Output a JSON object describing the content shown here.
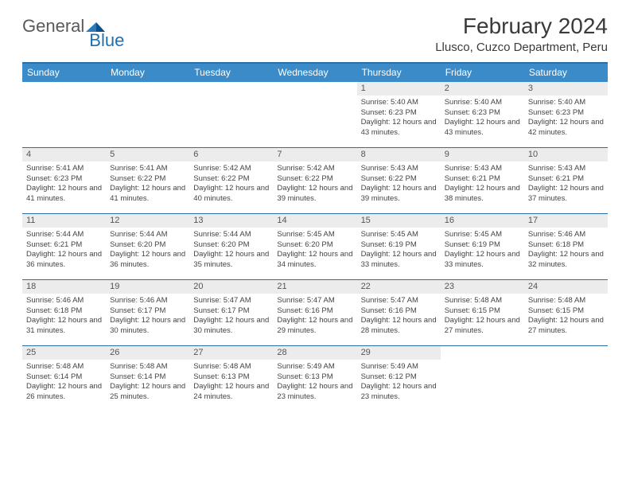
{
  "brand": {
    "word1": "General",
    "word2": "Blue"
  },
  "colors": {
    "header_bar": "#3b8bc9",
    "rule": "#2a6fa8",
    "daynum_bg": "#ececec",
    "text": "#333333",
    "brand_gray": "#5a5a5a",
    "brand_blue": "#1f6fb2",
    "background": "#ffffff"
  },
  "title": "February 2024",
  "location": "Llusco, Cuzco Department, Peru",
  "dow": [
    "Sunday",
    "Monday",
    "Tuesday",
    "Wednesday",
    "Thursday",
    "Friday",
    "Saturday"
  ],
  "weeks": [
    [
      null,
      null,
      null,
      null,
      {
        "n": "1",
        "sr": "5:40 AM",
        "ss": "6:23 PM",
        "dl": "12 hours and 43 minutes."
      },
      {
        "n": "2",
        "sr": "5:40 AM",
        "ss": "6:23 PM",
        "dl": "12 hours and 43 minutes."
      },
      {
        "n": "3",
        "sr": "5:40 AM",
        "ss": "6:23 PM",
        "dl": "12 hours and 42 minutes."
      }
    ],
    [
      {
        "n": "4",
        "sr": "5:41 AM",
        "ss": "6:23 PM",
        "dl": "12 hours and 41 minutes."
      },
      {
        "n": "5",
        "sr": "5:41 AM",
        "ss": "6:22 PM",
        "dl": "12 hours and 41 minutes."
      },
      {
        "n": "6",
        "sr": "5:42 AM",
        "ss": "6:22 PM",
        "dl": "12 hours and 40 minutes."
      },
      {
        "n": "7",
        "sr": "5:42 AM",
        "ss": "6:22 PM",
        "dl": "12 hours and 39 minutes."
      },
      {
        "n": "8",
        "sr": "5:43 AM",
        "ss": "6:22 PM",
        "dl": "12 hours and 39 minutes."
      },
      {
        "n": "9",
        "sr": "5:43 AM",
        "ss": "6:21 PM",
        "dl": "12 hours and 38 minutes."
      },
      {
        "n": "10",
        "sr": "5:43 AM",
        "ss": "6:21 PM",
        "dl": "12 hours and 37 minutes."
      }
    ],
    [
      {
        "n": "11",
        "sr": "5:44 AM",
        "ss": "6:21 PM",
        "dl": "12 hours and 36 minutes."
      },
      {
        "n": "12",
        "sr": "5:44 AM",
        "ss": "6:20 PM",
        "dl": "12 hours and 36 minutes."
      },
      {
        "n": "13",
        "sr": "5:44 AM",
        "ss": "6:20 PM",
        "dl": "12 hours and 35 minutes."
      },
      {
        "n": "14",
        "sr": "5:45 AM",
        "ss": "6:20 PM",
        "dl": "12 hours and 34 minutes."
      },
      {
        "n": "15",
        "sr": "5:45 AM",
        "ss": "6:19 PM",
        "dl": "12 hours and 33 minutes."
      },
      {
        "n": "16",
        "sr": "5:45 AM",
        "ss": "6:19 PM",
        "dl": "12 hours and 33 minutes."
      },
      {
        "n": "17",
        "sr": "5:46 AM",
        "ss": "6:18 PM",
        "dl": "12 hours and 32 minutes."
      }
    ],
    [
      {
        "n": "18",
        "sr": "5:46 AM",
        "ss": "6:18 PM",
        "dl": "12 hours and 31 minutes."
      },
      {
        "n": "19",
        "sr": "5:46 AM",
        "ss": "6:17 PM",
        "dl": "12 hours and 30 minutes."
      },
      {
        "n": "20",
        "sr": "5:47 AM",
        "ss": "6:17 PM",
        "dl": "12 hours and 30 minutes."
      },
      {
        "n": "21",
        "sr": "5:47 AM",
        "ss": "6:16 PM",
        "dl": "12 hours and 29 minutes."
      },
      {
        "n": "22",
        "sr": "5:47 AM",
        "ss": "6:16 PM",
        "dl": "12 hours and 28 minutes."
      },
      {
        "n": "23",
        "sr": "5:48 AM",
        "ss": "6:15 PM",
        "dl": "12 hours and 27 minutes."
      },
      {
        "n": "24",
        "sr": "5:48 AM",
        "ss": "6:15 PM",
        "dl": "12 hours and 27 minutes."
      }
    ],
    [
      {
        "n": "25",
        "sr": "5:48 AM",
        "ss": "6:14 PM",
        "dl": "12 hours and 26 minutes."
      },
      {
        "n": "26",
        "sr": "5:48 AM",
        "ss": "6:14 PM",
        "dl": "12 hours and 25 minutes."
      },
      {
        "n": "27",
        "sr": "5:48 AM",
        "ss": "6:13 PM",
        "dl": "12 hours and 24 minutes."
      },
      {
        "n": "28",
        "sr": "5:49 AM",
        "ss": "6:13 PM",
        "dl": "12 hours and 23 minutes."
      },
      {
        "n": "29",
        "sr": "5:49 AM",
        "ss": "6:12 PM",
        "dl": "12 hours and 23 minutes."
      },
      null,
      null
    ]
  ],
  "labels": {
    "sunrise": "Sunrise:",
    "sunset": "Sunset:",
    "daylight": "Daylight:"
  }
}
